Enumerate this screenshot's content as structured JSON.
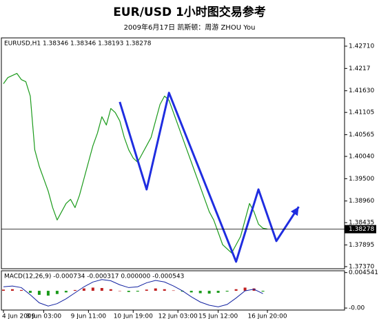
{
  "chart_data": [
    {
      "type": "price",
      "title": "EUR/USD 1小时图交易参考",
      "subtitle": "2009年6月17日   凯斯顿：周游 ZHOU You",
      "label": "EURUSD,H1 1.38346 1.38346 1.38193 1.38278",
      "xlim": [
        0,
        67
      ],
      "xticks": [
        {
          "value": 0,
          "label": "4 Jun 2009"
        },
        {
          "value": 9,
          "label": "8 Jun 03:00"
        },
        {
          "value": 19,
          "label": "9 Jun 11:00"
        },
        {
          "value": 29,
          "label": "10 Jun 19:00"
        },
        {
          "value": 39,
          "label": "12 Jun 03:00"
        },
        {
          "value": 48,
          "label": "15 Jun 12:00"
        },
        {
          "value": 59,
          "label": "16 Jun 20:00"
        }
      ],
      "ylim": [
        1.3732,
        1.4291
      ],
      "yticks": [
        {
          "value": 1.4271,
          "label": "1.42710"
        },
        1.4217,
        {
          "value": 1.4163,
          "label": "1.41630"
        },
        1.41105,
        1.40565,
        {
          "value": 1.4004,
          "label": "1.40040"
        },
        {
          "value": 1.395,
          "label": "1.39500"
        },
        {
          "value": 1.3896,
          "label": "1.38960"
        },
        1.38435,
        1.37895,
        {
          "value": 1.3737,
          "label": "1.37370"
        }
      ],
      "last_price": {
        "value": 1.38278,
        "label": "1.38278"
      },
      "series": [
        {
          "color": "#1a9a1a",
          "x": [
            0,
            1,
            2,
            3,
            4,
            5,
            6,
            7,
            8,
            9,
            10,
            11,
            12,
            13,
            14,
            15,
            16,
            17,
            18,
            19,
            20,
            21,
            22,
            23,
            24,
            25,
            26,
            27,
            28,
            29,
            30,
            31,
            32,
            33,
            34,
            35,
            36,
            37,
            38,
            39,
            40,
            41,
            42,
            43,
            44,
            45,
            46,
            47,
            48,
            49,
            50,
            51,
            52,
            53,
            54,
            55,
            56,
            57,
            58,
            59
          ],
          "values": [
            1.418,
            1.4195,
            1.42,
            1.4205,
            1.419,
            1.4185,
            1.415,
            1.402,
            1.398,
            1.395,
            1.392,
            1.388,
            1.385,
            1.387,
            1.389,
            1.39,
            1.388,
            1.391,
            1.395,
            1.399,
            1.403,
            1.406,
            1.41,
            1.408,
            1.412,
            1.411,
            1.409,
            1.405,
            1.402,
            1.4,
            1.399,
            1.401,
            1.403,
            1.405,
            1.409,
            1.413,
            1.415,
            1.414,
            1.411,
            1.408,
            1.405,
            1.402,
            1.399,
            1.396,
            1.393,
            1.39,
            1.387,
            1.385,
            1.382,
            1.379,
            1.378,
            1.377,
            1.379,
            1.381,
            1.385,
            1.389,
            1.387,
            1.384,
            1.383,
            1.3828
          ]
        },
        {
          "color": "#1f2de0",
          "x": [
            26,
            32,
            37,
            52,
            57,
            61,
            66
          ],
          "values": [
            1.4136,
            1.3924,
            1.4158,
            1.3749,
            1.3924,
            1.3799,
            1.3882
          ]
        }
      ]
    },
    {
      "type": "macd",
      "title": "MACD(12,26,9) -0.000734 -0.000317 0.000000 -0.000543",
      "xlim": [
        0,
        67
      ],
      "ylim": [
        -0.0048,
        0.005
      ],
      "yticks": [
        0.004541,
        {
          "value": -0.0043,
          "label": "-0.00"
        }
      ],
      "x": [
        0,
        2,
        4,
        6,
        8,
        10,
        12,
        14,
        16,
        18,
        20,
        22,
        24,
        26,
        28,
        30,
        32,
        34,
        36,
        38,
        40,
        42,
        44,
        46,
        48,
        50,
        52,
        54,
        56,
        58
      ],
      "series": [
        {
          "color": "#c02020",
          "values": [
            0.0003,
            0.0004,
            0.0002,
            -0.0005,
            -0.001,
            -0.0012,
            -0.0008,
            -0.0004,
            0.0002,
            0.0006,
            0.0008,
            0.0007,
            0.0004,
            0,
            -0.0003,
            -0.0002,
            0.0003,
            0.0006,
            0.0004,
            0.0001,
            -0.0002,
            -0.0004,
            -0.0006,
            -0.0007,
            -0.0005,
            -0.0002,
            0.0004,
            0.0008,
            0.0006,
            -0.0002
          ]
        },
        {
          "color": "#1020a0",
          "values": [
            0.001,
            0.0012,
            0.0008,
            -0.001,
            -0.003,
            -0.0038,
            -0.0032,
            -0.002,
            -0.0005,
            0.001,
            0.0022,
            0.0028,
            0.0025,
            0.0015,
            0.0008,
            0.001,
            0.002,
            0.0026,
            0.0022,
            0.0012,
            0,
            -0.0015,
            -0.0028,
            -0.0036,
            -0.004,
            -0.0034,
            -0.0018,
            0,
            0.0004,
            -0.0007
          ]
        }
      ]
    }
  ]
}
